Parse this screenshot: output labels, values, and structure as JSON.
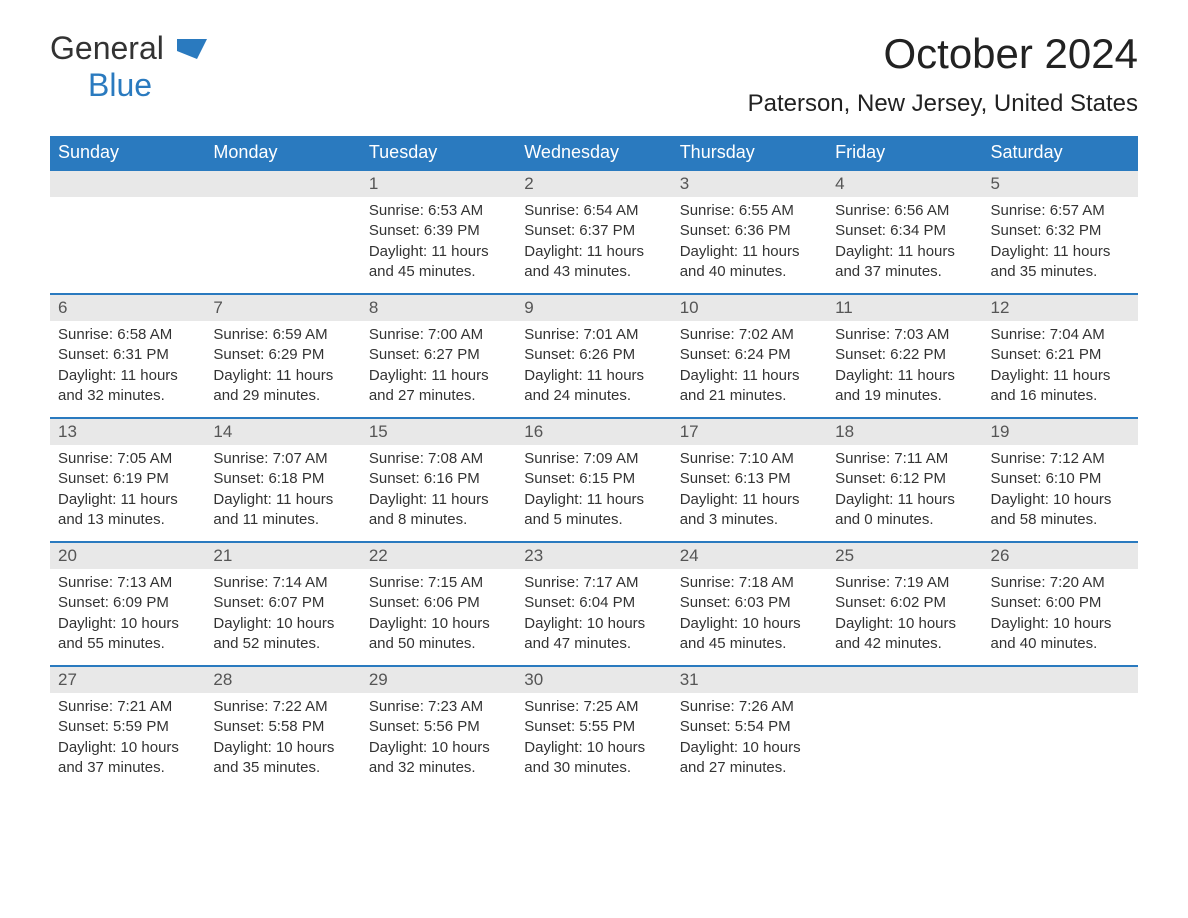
{
  "logo": {
    "text1": "General",
    "text2": "Blue"
  },
  "title": "October 2024",
  "location": "Paterson, New Jersey, United States",
  "colors": {
    "header_bg": "#2a7abf",
    "header_text": "#ffffff",
    "daynum_bg": "#e8e8e8",
    "daynum_text": "#555555",
    "body_text": "#333333",
    "rule": "#2a7abf",
    "page_bg": "#ffffff"
  },
  "weekdays": [
    "Sunday",
    "Monday",
    "Tuesday",
    "Wednesday",
    "Thursday",
    "Friday",
    "Saturday"
  ],
  "weeks": [
    [
      null,
      null,
      {
        "n": "1",
        "sunrise": "6:53 AM",
        "sunset": "6:39 PM",
        "daylight": "11 hours and 45 minutes."
      },
      {
        "n": "2",
        "sunrise": "6:54 AM",
        "sunset": "6:37 PM",
        "daylight": "11 hours and 43 minutes."
      },
      {
        "n": "3",
        "sunrise": "6:55 AM",
        "sunset": "6:36 PM",
        "daylight": "11 hours and 40 minutes."
      },
      {
        "n": "4",
        "sunrise": "6:56 AM",
        "sunset": "6:34 PM",
        "daylight": "11 hours and 37 minutes."
      },
      {
        "n": "5",
        "sunrise": "6:57 AM",
        "sunset": "6:32 PM",
        "daylight": "11 hours and 35 minutes."
      }
    ],
    [
      {
        "n": "6",
        "sunrise": "6:58 AM",
        "sunset": "6:31 PM",
        "daylight": "11 hours and 32 minutes."
      },
      {
        "n": "7",
        "sunrise": "6:59 AM",
        "sunset": "6:29 PM",
        "daylight": "11 hours and 29 minutes."
      },
      {
        "n": "8",
        "sunrise": "7:00 AM",
        "sunset": "6:27 PM",
        "daylight": "11 hours and 27 minutes."
      },
      {
        "n": "9",
        "sunrise": "7:01 AM",
        "sunset": "6:26 PM",
        "daylight": "11 hours and 24 minutes."
      },
      {
        "n": "10",
        "sunrise": "7:02 AM",
        "sunset": "6:24 PM",
        "daylight": "11 hours and 21 minutes."
      },
      {
        "n": "11",
        "sunrise": "7:03 AM",
        "sunset": "6:22 PM",
        "daylight": "11 hours and 19 minutes."
      },
      {
        "n": "12",
        "sunrise": "7:04 AM",
        "sunset": "6:21 PM",
        "daylight": "11 hours and 16 minutes."
      }
    ],
    [
      {
        "n": "13",
        "sunrise": "7:05 AM",
        "sunset": "6:19 PM",
        "daylight": "11 hours and 13 minutes."
      },
      {
        "n": "14",
        "sunrise": "7:07 AM",
        "sunset": "6:18 PM",
        "daylight": "11 hours and 11 minutes."
      },
      {
        "n": "15",
        "sunrise": "7:08 AM",
        "sunset": "6:16 PM",
        "daylight": "11 hours and 8 minutes."
      },
      {
        "n": "16",
        "sunrise": "7:09 AM",
        "sunset": "6:15 PM",
        "daylight": "11 hours and 5 minutes."
      },
      {
        "n": "17",
        "sunrise": "7:10 AM",
        "sunset": "6:13 PM",
        "daylight": "11 hours and 3 minutes."
      },
      {
        "n": "18",
        "sunrise": "7:11 AM",
        "sunset": "6:12 PM",
        "daylight": "11 hours and 0 minutes."
      },
      {
        "n": "19",
        "sunrise": "7:12 AM",
        "sunset": "6:10 PM",
        "daylight": "10 hours and 58 minutes."
      }
    ],
    [
      {
        "n": "20",
        "sunrise": "7:13 AM",
        "sunset": "6:09 PM",
        "daylight": "10 hours and 55 minutes."
      },
      {
        "n": "21",
        "sunrise": "7:14 AM",
        "sunset": "6:07 PM",
        "daylight": "10 hours and 52 minutes."
      },
      {
        "n": "22",
        "sunrise": "7:15 AM",
        "sunset": "6:06 PM",
        "daylight": "10 hours and 50 minutes."
      },
      {
        "n": "23",
        "sunrise": "7:17 AM",
        "sunset": "6:04 PM",
        "daylight": "10 hours and 47 minutes."
      },
      {
        "n": "24",
        "sunrise": "7:18 AM",
        "sunset": "6:03 PM",
        "daylight": "10 hours and 45 minutes."
      },
      {
        "n": "25",
        "sunrise": "7:19 AM",
        "sunset": "6:02 PM",
        "daylight": "10 hours and 42 minutes."
      },
      {
        "n": "26",
        "sunrise": "7:20 AM",
        "sunset": "6:00 PM",
        "daylight": "10 hours and 40 minutes."
      }
    ],
    [
      {
        "n": "27",
        "sunrise": "7:21 AM",
        "sunset": "5:59 PM",
        "daylight": "10 hours and 37 minutes."
      },
      {
        "n": "28",
        "sunrise": "7:22 AM",
        "sunset": "5:58 PM",
        "daylight": "10 hours and 35 minutes."
      },
      {
        "n": "29",
        "sunrise": "7:23 AM",
        "sunset": "5:56 PM",
        "daylight": "10 hours and 32 minutes."
      },
      {
        "n": "30",
        "sunrise": "7:25 AM",
        "sunset": "5:55 PM",
        "daylight": "10 hours and 30 minutes."
      },
      {
        "n": "31",
        "sunrise": "7:26 AM",
        "sunset": "5:54 PM",
        "daylight": "10 hours and 27 minutes."
      },
      null,
      null
    ]
  ],
  "labels": {
    "sunrise": "Sunrise: ",
    "sunset": "Sunset: ",
    "daylight": "Daylight: "
  }
}
